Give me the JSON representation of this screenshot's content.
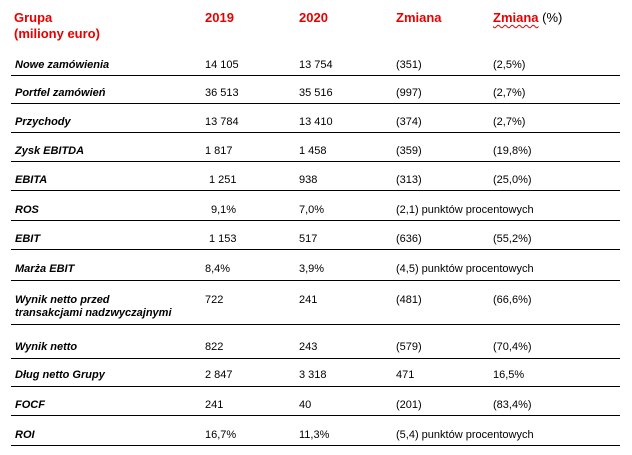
{
  "header": {
    "group_line1": "Grupa",
    "group_line2": "(miliony euro)",
    "col_2019": "2019",
    "col_2020": "2020",
    "col_change": "Zmiana",
    "col_change_pct_word": "Zmiana",
    "col_change_pct_unit": " (%)"
  },
  "rows": [
    {
      "label": "Nowe zamówienia",
      "v2019": "14 105",
      "v2020": "13 754",
      "change": "(351)",
      "pct": "(2,5%)"
    },
    {
      "label": "Portfel zamówień",
      "v2019": "36 513",
      "v2020": "35 516",
      "change": "(997)",
      "pct": "(2,7%)"
    },
    {
      "label": "Przychody",
      "v2019": "13 784",
      "v2020": "13 410",
      "change": "(374)",
      "pct": "(2,7%)"
    },
    {
      "label": "Zysk EBITDA",
      "v2019": "1 817",
      "v2020": "1 458",
      "change": "(359)",
      "pct": "(19,8%)"
    },
    {
      "label": "EBITA",
      "v2019": "1 251",
      "v2020": "938",
      "change": "(313)",
      "pct": "(25,0%)"
    },
    {
      "label": "ROS",
      "v2019": "9,1%",
      "v2020": "7,0%",
      "change": "(2,1) punktów procentowych",
      "pct": ""
    },
    {
      "label": "EBIT",
      "v2019": "1 153",
      "v2020": "517",
      "change": "(636)",
      "pct": "(55,2%)"
    },
    {
      "label": "Marża EBIT",
      "v2019": "8,4%",
      "v2020": "3,9%",
      "change": "(4,5) punktów procentowych",
      "pct": ""
    },
    {
      "label": "Wynik netto przed",
      "label2": "transakcjami nadzwyczajnymi",
      "v2019": "722",
      "v2020": "241",
      "change": "(481)",
      "pct": "(66,6%)"
    },
    {
      "label": "Wynik netto",
      "v2019": "822",
      "v2020": "243",
      "change": "(579)",
      "pct": "(70,4%)"
    },
    {
      "label": "Dług netto Grupy",
      "v2019": "2 847",
      "v2020": "3 318",
      "change": "471",
      "pct": "16,5%"
    },
    {
      "label": "FOCF",
      "v2019": "241",
      "v2020": "40",
      "change": "(201)",
      "pct": "(83,4%)"
    },
    {
      "label": "ROI",
      "v2019": "16,7%",
      "v2020": "11,3%",
      "change": "(5,4) punktów procentowych",
      "pct": ""
    }
  ]
}
